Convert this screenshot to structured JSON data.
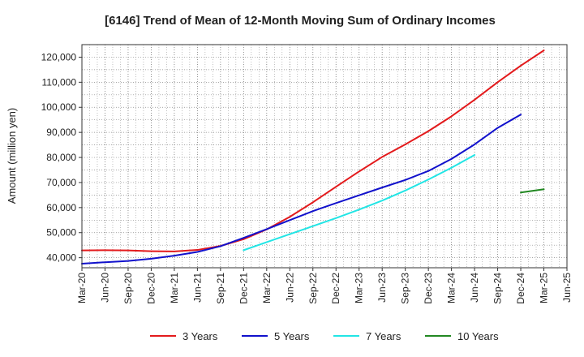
{
  "chart_data": {
    "type": "line",
    "title": "[6146]  Trend of Mean of 12-Month Moving Sum of Ordinary Incomes",
    "xlabel": "",
    "ylabel": "Amount (million yen)",
    "ylim": [
      36000,
      125000
    ],
    "yticks": [
      40000,
      50000,
      60000,
      70000,
      80000,
      90000,
      100000,
      110000,
      120000
    ],
    "ytick_labels": [
      "40,000",
      "50,000",
      "60,000",
      "70,000",
      "80,000",
      "90,000",
      "100,000",
      "110,000",
      "120,000"
    ],
    "categories": [
      "Mar-20",
      "Jun-20",
      "Sep-20",
      "Dec-20",
      "Mar-21",
      "Jun-21",
      "Sep-21",
      "Dec-21",
      "Mar-22",
      "Jun-22",
      "Sep-22",
      "Dec-22",
      "Mar-23",
      "Jun-23",
      "Sep-23",
      "Dec-23",
      "Mar-24",
      "Jun-24",
      "Sep-24",
      "Dec-24",
      "Mar-25",
      "Jun-25"
    ],
    "grid": true,
    "legend_position": "bottom",
    "series": [
      {
        "name": "3 Years",
        "color": "#e31a1c",
        "values": [
          42900,
          43000,
          42900,
          42600,
          42500,
          43100,
          44700,
          47400,
          51300,
          56300,
          62100,
          68300,
          74400,
          80200,
          85200,
          90500,
          96400,
          103000,
          110000,
          116600,
          122700,
          null
        ]
      },
      {
        "name": "5 Years",
        "color": "#1111cc",
        "values": [
          37600,
          38200,
          38700,
          39600,
          40800,
          42300,
          44600,
          47900,
          51400,
          55000,
          58600,
          61800,
          64900,
          68000,
          71000,
          74600,
          79400,
          85200,
          91800,
          97100,
          null,
          null
        ]
      },
      {
        "name": "7 Years",
        "color": "#22e5e5",
        "values": [
          null,
          null,
          null,
          null,
          null,
          null,
          null,
          43000,
          46200,
          49400,
          52600,
          55800,
          59200,
          62800,
          66800,
          71200,
          75900,
          81000,
          null,
          null,
          null,
          null
        ]
      },
      {
        "name": "10 Years",
        "color": "#228822",
        "values": [
          null,
          null,
          null,
          null,
          null,
          null,
          null,
          null,
          null,
          null,
          null,
          null,
          null,
          null,
          null,
          null,
          null,
          null,
          null,
          66000,
          67300,
          null
        ]
      }
    ]
  }
}
